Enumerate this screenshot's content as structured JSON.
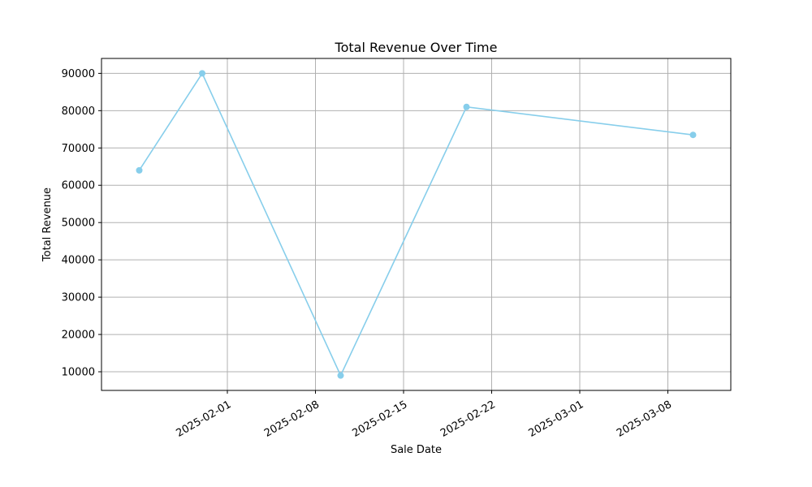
{
  "chart_data": {
    "type": "line",
    "title": "Total Revenue Over Time",
    "xlabel": "Sale Date",
    "ylabel": "Total Revenue",
    "x_axis_type": "date",
    "xlim": [
      "2025-01-22",
      "2025-03-13"
    ],
    "ylim": [
      5000,
      94000
    ],
    "x_ticks": [
      "2025-02-01",
      "2025-02-08",
      "2025-02-15",
      "2025-02-22",
      "2025-03-01",
      "2025-03-08"
    ],
    "y_ticks": [
      10000,
      20000,
      30000,
      40000,
      50000,
      60000,
      70000,
      80000,
      90000
    ],
    "grid": true,
    "line_color": "#87ceeb",
    "marker": "circle",
    "series": [
      {
        "x": [
          "2025-01-25",
          "2025-01-30",
          "2025-02-10",
          "2025-02-20",
          "2025-03-10"
        ],
        "y": [
          64000,
          90000,
          9000,
          81000,
          73500
        ]
      }
    ]
  }
}
